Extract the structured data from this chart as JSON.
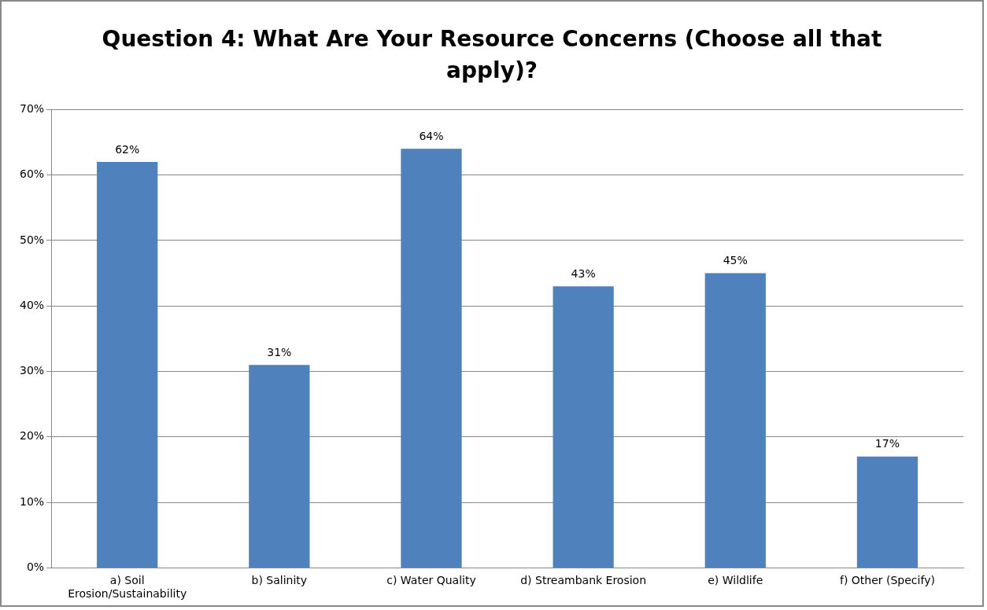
{
  "chart_data": {
    "type": "bar",
    "title": "Question 4:  What Are Your Resource Concerns (Choose all that apply)?",
    "categories": [
      "a) Soil Erosion/Sustainability",
      "b) Salinity",
      "c) Water Quality",
      "d) Streambank Erosion",
      "e) Wildlife",
      "f) Other (Specify)"
    ],
    "values": [
      62,
      31,
      64,
      43,
      45,
      17
    ],
    "value_labels": [
      "62%",
      "31%",
      "64%",
      "43%",
      "45%",
      "17%"
    ],
    "color": "#4f81bd",
    "ylim": [
      0,
      70
    ],
    "yticks": [
      {
        "value": 0,
        "label": "0%"
      },
      {
        "value": 10,
        "label": "10%"
      },
      {
        "value": 20,
        "label": "20%"
      },
      {
        "value": 30,
        "label": "30%"
      },
      {
        "value": 40,
        "label": "40%"
      },
      {
        "value": 50,
        "label": "50%"
      },
      {
        "value": 60,
        "label": "60%"
      },
      {
        "value": 70,
        "label": "70%"
      }
    ],
    "grid": "y",
    "legend": false
  }
}
